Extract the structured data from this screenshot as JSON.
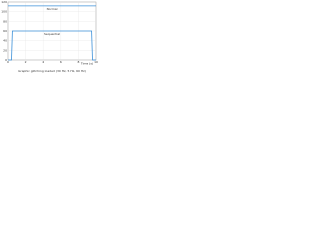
{
  "chart_data": {
    "type": "line",
    "caption": "Graphic glitching loaded (30 Hz, 5 Hz, 60 Hz)",
    "x_label": "Time (s)",
    "x": [
      0,
      0.4,
      0.5,
      5,
      9.5,
      9.6,
      10
    ],
    "series": [
      {
        "name": "Normal",
        "color": "#3a8fd8",
        "values": [
          112,
          112,
          112,
          112,
          112,
          112,
          112
        ]
      },
      {
        "name": "Sequential",
        "color": "#3a8fd8",
        "values": [
          0,
          0,
          60,
          60,
          60,
          0,
          0
        ]
      }
    ],
    "xlim": [
      0,
      10
    ],
    "xticks": [
      0,
      2,
      4,
      6,
      8,
      10
    ],
    "ylim": [
      0,
      120
    ],
    "yticks": [
      0,
      20,
      40,
      60,
      80,
      100,
      120
    ],
    "grid": true
  }
}
